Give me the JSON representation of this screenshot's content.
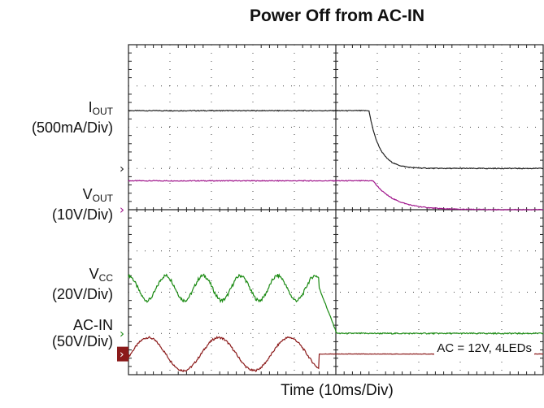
{
  "chart_data": {
    "type": "line",
    "title": "Power Off from AC-IN",
    "xlabel": "Time (10ms/Div)",
    "x_divisions": 10,
    "y_divisions": 8,
    "grid": true,
    "annotation": "AC = 12V, 4LEDs",
    "channels": [
      {
        "id": "iout",
        "name_main": "I",
        "name_sub": "OUT",
        "scale": "(500mA/Div)",
        "color": "#222222",
        "marker": "›",
        "marker_level_div": 5.0,
        "shape": "step_exp",
        "before_div": 6.4,
        "after_div": 5.0,
        "event_time_div": 5.8,
        "tau_div": 0.25
      },
      {
        "id": "vout",
        "name_main": "V",
        "name_sub": "OUT",
        "scale": "(10V/Div)",
        "color": "#a0168c",
        "marker": "›",
        "marker_level_div": 4.0,
        "shape": "step_exp",
        "before_div": 4.7,
        "after_div": 4.0,
        "event_time_div": 5.9,
        "tau_div": 0.5
      },
      {
        "id": "vcc",
        "name_main": "V",
        "name_sub": "CC",
        "scale": "(20V/Div)",
        "color": "#1a8a12",
        "marker": "›",
        "marker_level_div": 1.0,
        "shape": "ripple_drop",
        "ripple_top_div": 2.4,
        "ripple_bottom_div": 1.8,
        "ripple_period_div": 0.9,
        "drop_time_div": 4.6,
        "settled_div": 1.0
      },
      {
        "id": "acin",
        "name_main": "AC-IN",
        "name_sub": "",
        "scale": "(50V/Div)",
        "color": "#8b1a1a",
        "marker": "›",
        "marker_level_div": 0.5,
        "shape": "sine_stop",
        "center_div": 0.5,
        "amplitude_div": 0.4,
        "period_div": 1.7,
        "stop_time_div": 4.6
      }
    ]
  }
}
